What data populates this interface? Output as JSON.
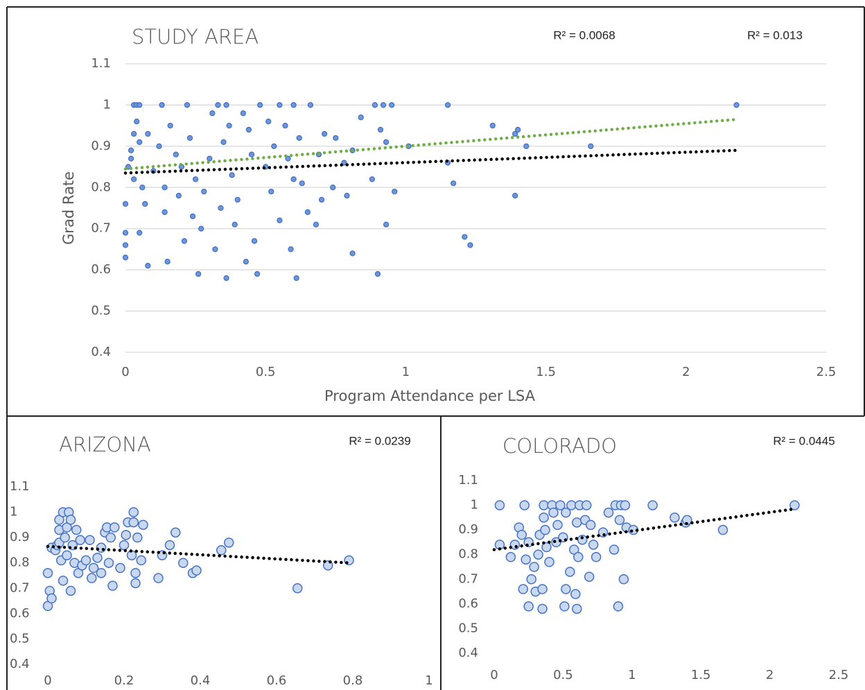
{
  "chart_data": [
    {
      "type": "scatter",
      "title": "STUDY AREA",
      "xlabel": "Program Attendance per LSA",
      "ylabel": "Grad Rate",
      "xlim": [
        0,
        2.5
      ],
      "xticks": [
        0,
        0.5,
        1,
        1.5,
        2,
        2.5
      ],
      "ylim": [
        0.4,
        1.1
      ],
      "yticks": [
        0.4,
        0.5,
        0.6,
        0.7,
        0.8,
        0.9,
        1,
        1.1
      ],
      "grid": true,
      "series": [
        {
          "color": "#4472c4",
          "fill": "#6f96d8",
          "x": [
            0,
            0,
            0,
            0,
            0.01,
            0.02,
            0.02,
            0.03,
            0.03,
            0.04,
            0.05,
            0.04,
            0.05,
            0.03,
            0.06,
            0.05,
            0.07,
            0.08,
            0.08,
            0.1,
            0.12,
            0.13,
            0.14,
            0.14,
            0.15,
            0.16,
            0.18,
            0.19,
            0.2,
            0.21,
            0.22,
            0.23,
            0.24,
            0.25,
            0.26,
            0.27,
            0.28,
            0.3,
            0.31,
            0.32,
            0.33,
            0.34,
            0.35,
            0.36,
            0.36,
            0.37,
            0.38,
            0.39,
            0.4,
            0.42,
            0.43,
            0.44,
            0.45,
            0.46,
            0.47,
            0.48,
            0.5,
            0.51,
            0.52,
            0.53,
            0.55,
            0.55,
            0.57,
            0.58,
            0.59,
            0.6,
            0.6,
            0.61,
            0.62,
            0.63,
            0.65,
            0.66,
            0.68,
            0.69,
            0.7,
            0.71,
            0.74,
            0.75,
            0.78,
            0.79,
            0.81,
            0.81,
            0.84,
            0.88,
            0.89,
            0.9,
            0.91,
            0.92,
            0.93,
            0.93,
            0.95,
            0.96,
            1.01,
            1.15,
            1.15,
            1.17,
            1.21,
            1.23,
            1.31,
            1.39,
            1.4,
            1.39,
            1.43,
            1.66,
            2.18
          ],
          "values": [
            0.63,
            0.66,
            0.69,
            0.76,
            0.85,
            0.87,
            0.89,
            0.93,
            1,
            1,
            1,
            0.96,
            0.91,
            0.82,
            0.8,
            0.69,
            0.76,
            0.61,
            0.93,
            0.84,
            0.9,
            1,
            0.74,
            0.8,
            0.62,
            0.95,
            0.88,
            0.78,
            0.85,
            0.67,
            1,
            0.92,
            0.73,
            0.82,
            0.59,
            0.7,
            0.79,
            0.87,
            0.98,
            0.65,
            1,
            0.75,
            0.91,
            0.58,
            1,
            0.95,
            0.83,
            0.71,
            0.77,
            0.98,
            0.62,
            0.94,
            0.88,
            0.67,
            0.59,
            1,
            0.85,
            0.96,
            0.79,
            0.9,
            1,
            0.72,
            0.95,
            0.87,
            0.65,
            1,
            0.82,
            0.58,
            0.92,
            0.81,
            0.74,
            1,
            0.71,
            0.88,
            0.77,
            0.93,
            0.8,
            0.92,
            0.86,
            0.78,
            0.89,
            0.64,
            0.97,
            0.82,
            1,
            0.59,
            0.94,
            1,
            0.91,
            0.71,
            1,
            0.79,
            0.9,
            1,
            0.86,
            0.81,
            0.68,
            0.66,
            0.95,
            0.93,
            0.94,
            0.78,
            0.9,
            0.9,
            1
          ]
        }
      ],
      "trendlines": [
        {
          "color": "#000000",
          "x": [
            0,
            2.18
          ],
          "values": [
            0.835,
            0.89
          ],
          "label": "R² = 0.0068"
        },
        {
          "color": "#70ad47",
          "x": [
            0,
            2.18
          ],
          "values": [
            0.845,
            0.965
          ],
          "label": "R² = 0.013"
        }
      ]
    },
    {
      "type": "scatter",
      "title": "ARIZONA",
      "xlim": [
        0,
        1
      ],
      "xticks": [
        0,
        0.2,
        0.4,
        0.6,
        0.8,
        1
      ],
      "ylim": [
        0.4,
        1.1
      ],
      "yticks": [
        0.4,
        0.5,
        0.6,
        0.7,
        0.8,
        0.9,
        1,
        1.1
      ],
      "grid": false,
      "series": [
        {
          "color": "#4472c4",
          "fill": "#c9d7ef",
          "x": [
            0,
            0,
            0.005,
            0.01,
            0.01,
            0.02,
            0.025,
            0.03,
            0.03,
            0.03,
            0.035,
            0.04,
            0.04,
            0.045,
            0.05,
            0.05,
            0.055,
            0.06,
            0.06,
            0.065,
            0.07,
            0.075,
            0.08,
            0.085,
            0.09,
            0.1,
            0.11,
            0.115,
            0.12,
            0.13,
            0.14,
            0.14,
            0.15,
            0.155,
            0.16,
            0.165,
            0.17,
            0.175,
            0.19,
            0.2,
            0.205,
            0.21,
            0.22,
            0.225,
            0.225,
            0.23,
            0.23,
            0.235,
            0.245,
            0.25,
            0.29,
            0.3,
            0.32,
            0.335,
            0.355,
            0.38,
            0.39,
            0.455,
            0.475,
            0.655,
            0.735,
            0.79
          ],
          "values": [
            0.63,
            0.76,
            0.69,
            0.66,
            0.86,
            0.85,
            0.87,
            0.88,
            0.93,
            0.97,
            0.81,
            0.73,
            1,
            0.9,
            0.94,
            0.83,
            1,
            0.97,
            0.69,
            0.87,
            0.8,
            0.93,
            0.76,
            0.89,
            0.79,
            0.81,
            0.89,
            0.74,
            0.78,
            0.82,
            0.76,
            0.86,
            0.92,
            0.94,
            0.8,
            0.9,
            0.71,
            0.94,
            0.78,
            0.87,
            0.91,
            0.96,
            0.83,
            1,
            0.96,
            0.76,
            0.72,
            0.9,
            0.81,
            0.95,
            0.74,
            0.83,
            0.87,
            0.92,
            0.8,
            0.76,
            0.77,
            0.85,
            0.88,
            0.7,
            0.79,
            0.81
          ]
        }
      ],
      "trendlines": [
        {
          "color": "#000000",
          "x": [
            0,
            0.79
          ],
          "values": [
            0.865,
            0.8
          ],
          "label": "R² = 0.0239"
        }
      ]
    },
    {
      "type": "scatter",
      "title": "COLORADO",
      "xlim": [
        0,
        2.5
      ],
      "xticks": [
        0,
        0.5,
        1,
        1.5,
        2,
        2.5
      ],
      "ylim": [
        0.4,
        1.1
      ],
      "yticks": [
        0.4,
        0.5,
        0.6,
        0.7,
        0.8,
        0.9,
        1,
        1.1
      ],
      "grid": false,
      "series": [
        {
          "color": "#4472c4",
          "fill": "#c9d7ef",
          "x": [
            0.04,
            0.04,
            0.12,
            0.15,
            0.18,
            0.2,
            0.21,
            0.22,
            0.23,
            0.25,
            0.25,
            0.27,
            0.29,
            0.3,
            0.32,
            0.33,
            0.35,
            0.35,
            0.36,
            0.36,
            0.37,
            0.38,
            0.4,
            0.42,
            0.43,
            0.45,
            0.46,
            0.48,
            0.5,
            0.51,
            0.52,
            0.52,
            0.55,
            0.56,
            0.58,
            0.59,
            0.6,
            0.6,
            0.61,
            0.62,
            0.64,
            0.66,
            0.67,
            0.69,
            0.7,
            0.72,
            0.74,
            0.79,
            0.83,
            0.87,
            0.88,
            0.9,
            0.91,
            0.92,
            0.94,
            0.95,
            0.96,
            1.01,
            1.15,
            1.31,
            1.39,
            1.4,
            1.66,
            2.18
          ],
          "values": [
            1,
            0.84,
            0.79,
            0.84,
            0.91,
            0.88,
            0.66,
            1,
            0.78,
            0.59,
            0.85,
            0.7,
            0.75,
            0.65,
            0.8,
            0.88,
            0.58,
            0.66,
            1,
            0.95,
            0.9,
            0.83,
            0.77,
            1,
            0.97,
            0.85,
            0.92,
            1,
            0.87,
            0.59,
            0.97,
            0.66,
            0.73,
            1,
            0.82,
            0.64,
            0.58,
            0.93,
            0.79,
            1,
            0.86,
            0.94,
            1,
            0.71,
            0.92,
            0.84,
            0.79,
            0.89,
            0.97,
            0.82,
            1,
            0.59,
            0.94,
            1,
            0.7,
            1,
            0.91,
            0.9,
            1,
            0.95,
            0.93,
            0.94,
            0.9,
            1
          ]
        }
      ],
      "trendlines": [
        {
          "color": "#000000",
          "x": [
            0,
            2.18
          ],
          "values": [
            0.82,
            0.985
          ],
          "label": "R² = 0.0445"
        }
      ]
    }
  ]
}
